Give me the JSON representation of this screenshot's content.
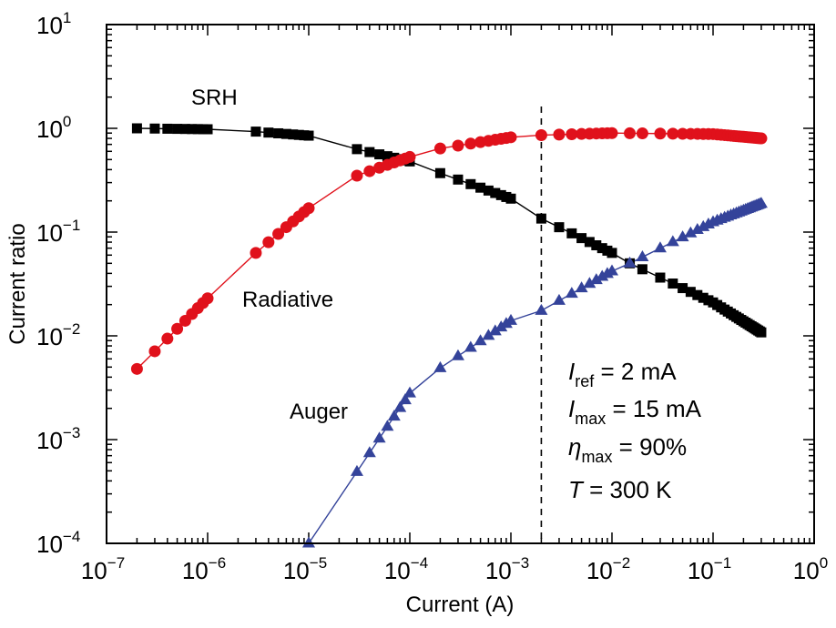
{
  "chart_data": {
    "type": "line",
    "title": "",
    "xlabel": "Current (A)",
    "ylabel": "Current ratio",
    "xscale": "log",
    "yscale": "log",
    "xlim": [
      1e-07,
      1
    ],
    "ylim": [
      0.0001,
      10
    ],
    "grid": false,
    "x_tick_labels": [
      {
        "base": "10",
        "exp": "−7",
        "value": 1e-07
      },
      {
        "base": "10",
        "exp": "−6",
        "value": 1e-06
      },
      {
        "base": "10",
        "exp": "−5",
        "value": 1e-05
      },
      {
        "base": "10",
        "exp": "−4",
        "value": 0.0001
      },
      {
        "base": "10",
        "exp": "−3",
        "value": 0.001
      },
      {
        "base": "10",
        "exp": "−2",
        "value": 0.01
      },
      {
        "base": "10",
        "exp": "−1",
        "value": 0.1
      },
      {
        "base": "10",
        "exp": "0",
        "value": 1
      }
    ],
    "y_tick_labels": [
      {
        "base": "10",
        "exp": "−4",
        "value": 0.0001
      },
      {
        "base": "10",
        "exp": "−3",
        "value": 0.001
      },
      {
        "base": "10",
        "exp": "−2",
        "value": 0.01
      },
      {
        "base": "10",
        "exp": "−1",
        "value": 0.1
      },
      {
        "base": "10",
        "exp": "0",
        "value": 1
      },
      {
        "base": "10",
        "exp": "1",
        "value": 10
      }
    ],
    "x": [
      2e-07,
      3e-07,
      4e-07,
      5e-07,
      6e-07,
      7e-07,
      8e-07,
      9e-07,
      1e-06,
      3e-06,
      4e-06,
      5e-06,
      6e-06,
      7e-06,
      8e-06,
      9e-06,
      1e-05,
      3e-05,
      4e-05,
      5e-05,
      6e-05,
      7e-05,
      8e-05,
      9e-05,
      0.0001,
      0.0002,
      0.0003,
      0.0004,
      0.0005,
      0.0006,
      0.0007,
      0.0008,
      0.0009,
      0.001,
      0.002,
      0.003,
      0.004,
      0.005,
      0.006,
      0.007,
      0.008,
      0.009,
      0.01,
      0.015,
      0.02,
      0.03,
      0.04,
      0.05,
      0.06,
      0.07,
      0.08,
      0.09,
      0.1,
      0.11,
      0.12,
      0.13,
      0.14,
      0.15,
      0.16,
      0.17,
      0.18,
      0.19,
      0.2,
      0.21,
      0.22,
      0.23,
      0.24,
      0.25,
      0.26,
      0.27,
      0.28,
      0.29,
      0.3
    ],
    "series": [
      {
        "name": "SRH",
        "marker": "square",
        "color": "#000000",
        "anchors": [
          [
            2e-07,
            1.0
          ],
          [
            1e-06,
            0.98
          ],
          [
            3e-06,
            0.93
          ],
          [
            1e-05,
            0.85
          ],
          [
            3e-05,
            0.63
          ],
          [
            0.0001,
            0.48
          ],
          [
            0.0002,
            0.37
          ],
          [
            0.001,
            0.21
          ],
          [
            0.002,
            0.135
          ],
          [
            0.01,
            0.063
          ],
          [
            0.015,
            0.05
          ],
          [
            0.1,
            0.021
          ],
          [
            0.3,
            0.0108
          ]
        ]
      },
      {
        "name": "Radiative",
        "marker": "circle",
        "color": "#e0111b",
        "anchors": [
          [
            2e-07,
            0.0048
          ],
          [
            3e-07,
            0.0071
          ],
          [
            1e-06,
            0.023
          ],
          [
            3e-06,
            0.063
          ],
          [
            1e-05,
            0.17
          ],
          [
            3e-05,
            0.35
          ],
          [
            0.0001,
            0.53
          ],
          [
            0.0002,
            0.64
          ],
          [
            0.001,
            0.82
          ],
          [
            0.002,
            0.86
          ],
          [
            0.01,
            0.9
          ],
          [
            0.1,
            0.88
          ],
          [
            0.3,
            0.8
          ]
        ]
      },
      {
        "name": "Auger",
        "marker": "triangle",
        "color": "#34439a",
        "xmin": 1e-05,
        "anchors": [
          [
            1e-05,
            0.0001
          ],
          [
            3e-05,
            0.00049
          ],
          [
            0.0001,
            0.0028
          ],
          [
            0.0002,
            0.0049
          ],
          [
            0.001,
            0.014
          ],
          [
            0.002,
            0.0175
          ],
          [
            0.01,
            0.042
          ],
          [
            0.015,
            0.05
          ],
          [
            0.1,
            0.125
          ],
          [
            0.3,
            0.188
          ]
        ]
      }
    ],
    "annotations": {
      "curve_labels": [
        {
          "text": "SRH",
          "near": "top-left"
        },
        {
          "text": "Radiative",
          "near": "center-left"
        },
        {
          "text": "Auger",
          "near": "lower-left"
        }
      ],
      "reference_line": {
        "x": 0.002,
        "style": "dashed",
        "color": "#000000"
      },
      "parameters": [
        {
          "symbol": "I",
          "sub": "ref",
          "rest": " = 2 mA"
        },
        {
          "symbol": "I",
          "sub": "max",
          "rest": " = 15 mA"
        },
        {
          "symbol": "η",
          "sub": "max",
          "rest": " = 90%"
        },
        {
          "symbol": "T",
          "sub": "",
          "rest": " = 300 K"
        }
      ]
    }
  }
}
